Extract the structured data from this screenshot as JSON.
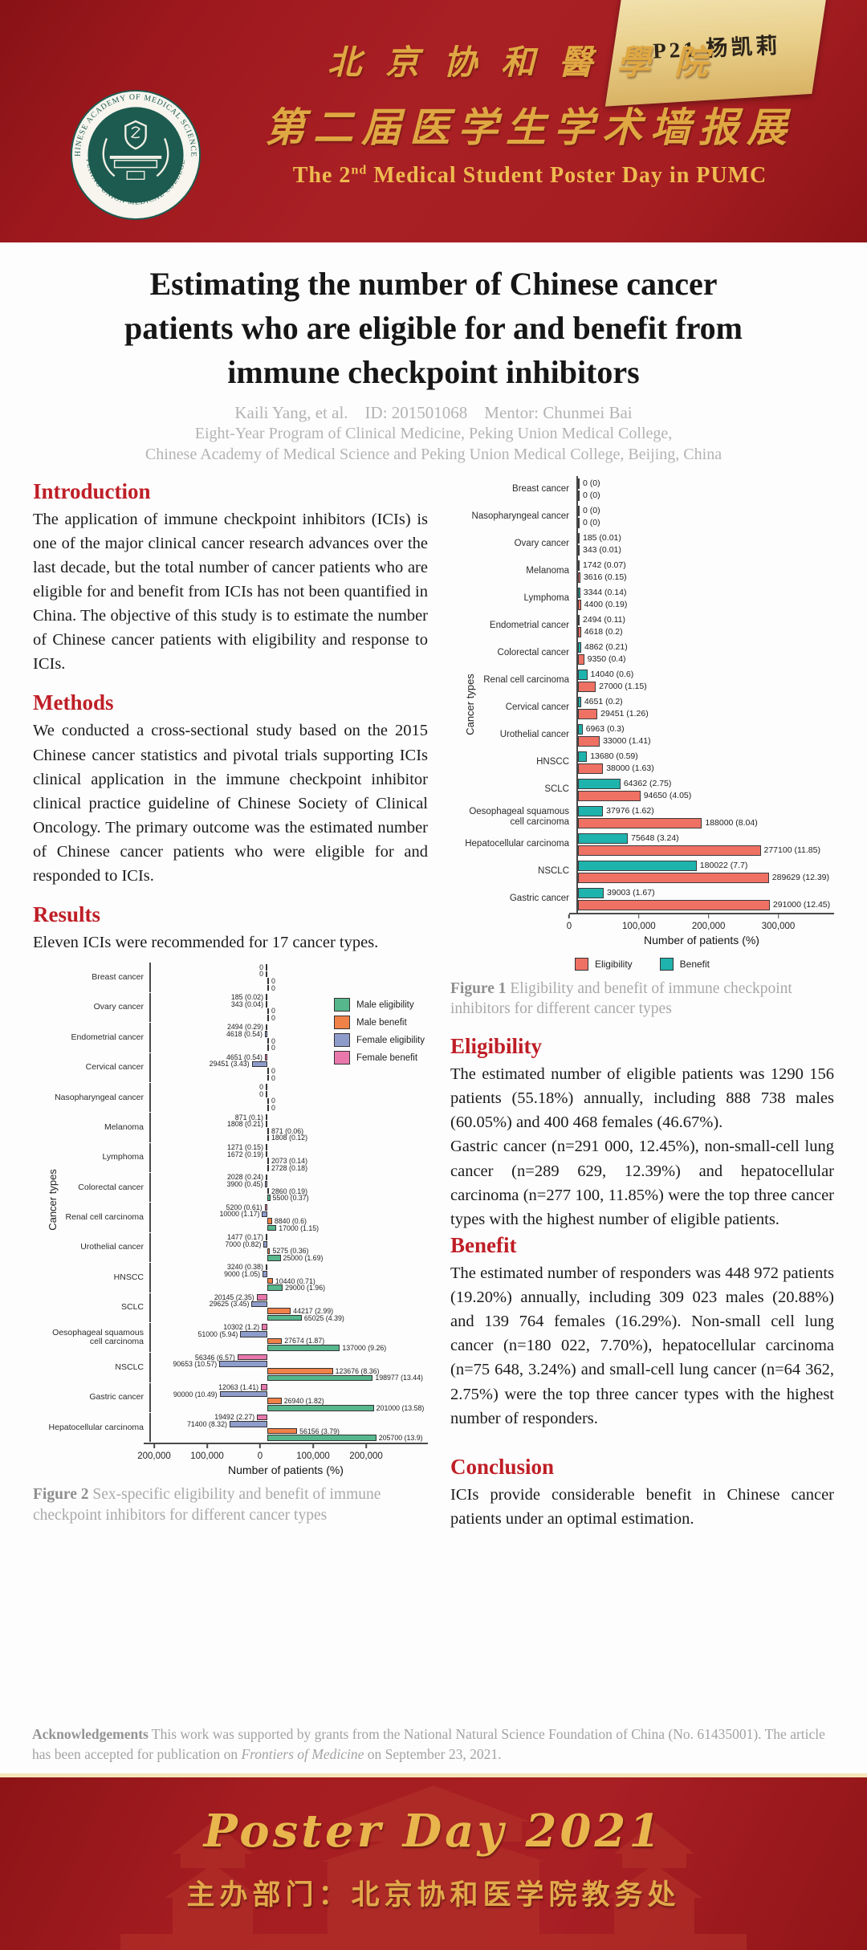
{
  "badge": {
    "text": "P21  杨凯莉"
  },
  "header": {
    "logo_ring_top": "CHINESE ACADEMY OF MEDICAL SCIENCES",
    "logo_ring_bottom": "PEKING UNION MEDICAL COLLEGE",
    "line1_cn": "北京协和醫學院",
    "line2_cn": "第二届医学生学术墙报展",
    "line_en_prefix": "The 2",
    "line_en_sup": "nd",
    "line_en_suffix": " Medical Student Poster Day in PUMC"
  },
  "title": {
    "line1": "Estimating the number of Chinese cancer",
    "line2": "patients who are eligible for and benefit from",
    "line3": "immune checkpoint inhibitors"
  },
  "authors": "Kaili Yang, et al.    ID: 201501068    Mentor: Chunmei Bai",
  "affiliation1": "Eight-Year Program of Clinical Medicine, Peking Union Medical College,",
  "affiliation2": "Chinese Academy of Medical Science and Peking Union Medical College, Beijing, China",
  "sections": {
    "introduction": {
      "heading": "Introduction",
      "body": "The application of immune checkpoint inhibitors (ICIs) is one of the major clinical cancer research advances over the last decade, but the total number of cancer patients who are eligible for and benefit from ICIs has not been quantified in China. The objective of this study is to estimate the number of Chinese cancer patients with eligibility and response to ICIs."
    },
    "methods": {
      "heading": "Methods",
      "body": "We conducted a cross-sectional study based on the 2015 Chinese cancer statistics and pivotal trials supporting ICIs clinical application in the immune checkpoint inhibitor clinical practice guideline of Chinese Society of Clinical Oncology. The primary outcome was the estimated number of Chinese cancer patients who were eligible for and responded to ICIs."
    },
    "results": {
      "heading": "Results",
      "body": "Eleven ICIs were recommended for 17 cancer types."
    },
    "eligibility": {
      "heading": "Eligibility",
      "body1": "The estimated number of eligible patients was 1290 156 patients (55.18%) annually, including 888 738 males (60.05%) and 400 468 females (46.67%).",
      "body2": "Gastric cancer (n=291 000, 12.45%), non-small-cell lung cancer (n=289 629, 12.39%) and hepatocellular carcinoma (n=277 100, 11.85%) were the top three cancer types with the highest number of eligible patients."
    },
    "benefit": {
      "heading": "Benefit",
      "body": "The estimated number of responders was 448 972 patients (19.20%) annually, including 309 023 males (20.88%) and 139 764 females (16.29%). Non-small cell lung cancer (n=180 022, 7.70%), hepatocellular carcinoma (n=75 648, 3.24%) and small-cell lung cancer (n=64 362, 2.75%) were the top three cancer types with the highest number of responders."
    },
    "conclusion": {
      "heading": "Conclusion",
      "body": "ICIs provide considerable benefit in Chinese cancer patients under an optimal estimation."
    }
  },
  "figures": {
    "fig1_bold": "Figure 1",
    "fig1_text": " Eligibility and benefit of immune checkpoint inhibitors for different cancer types",
    "fig2_bold": "Figure 2",
    "fig2_text": " Sex-specific eligibility and benefit of immune checkpoint inhibitors for different cancer types"
  },
  "acknowledgements": {
    "bold": "Acknowledgements",
    "text1": " This work was supported by grants from the National Natural Science Foundation of China (No. 61435001). The article has been accepted for publication on ",
    "italic": "Frontiers of Medicine",
    "text2": " on September 23, 2021."
  },
  "footer": {
    "script_text": "Poster Day 2021",
    "host_line": "主办部门：北京协和医学院教务处"
  },
  "chart_data": [
    {
      "id": "figure1",
      "type": "bar",
      "orientation": "horizontal",
      "xlabel": "Number of patients (%)",
      "ylabel": "Cancer types",
      "x_ticks": [
        "0",
        "100,000",
        "200,000",
        "300,000"
      ],
      "x_tick_values": [
        0,
        100000,
        200000,
        300000
      ],
      "xlim": [
        0,
        380000
      ],
      "grid": false,
      "legend_position": "bottom",
      "legend": [
        {
          "name": "Eligibility",
          "color": "#ee7164"
        },
        {
          "name": "Benefit",
          "color": "#1fb3ad"
        }
      ],
      "categories": [
        "Breast cancer",
        "Nasopharyngeal cancer",
        "Ovary cancer",
        "Melanoma",
        "Lymphoma",
        "Endometrial cancer",
        "Colorectal cancer",
        "Renal cell carcinoma",
        "Cervical cancer",
        "Urothelial cancer",
        "HNSCC",
        "SCLC",
        "Oesophageal squamous\ncell carcinoma",
        "Hepatocellular carcinoma",
        "NSCLC",
        "Gastric cancer"
      ],
      "series": [
        {
          "name": "Benefit",
          "color": "#1fb3ad",
          "values": [
            0,
            0,
            185,
            1742,
            3344,
            2494,
            4862,
            14040,
            4651,
            6963,
            13680,
            64362,
            37976,
            75648,
            180022,
            39003
          ],
          "labels": [
            "0 (0)",
            "0 (0)",
            "185 (0.01)",
            "1742 (0.07)",
            "3344 (0.14)",
            "2494 (0.11)",
            "4862 (0.21)",
            "14040 (0.6)",
            "4651 (0.2)",
            "6963 (0.3)",
            "13680 (0.59)",
            "64362 (2.75)",
            "37976 (1.62)",
            "75648 (3.24)",
            "180022 (7.7)",
            "39003 (1.67)"
          ]
        },
        {
          "name": "Eligibility",
          "color": "#ee7164",
          "values": [
            0,
            0,
            343,
            3616,
            4400,
            4618,
            9350,
            27000,
            29451,
            33000,
            38000,
            94650,
            188000,
            277100,
            289629,
            291000
          ],
          "labels": [
            "0 (0)",
            "0 (0)",
            "343 (0.01)",
            "3616 (0.15)",
            "4400 (0.19)",
            "4618 (0.2)",
            "9350 (0.4)",
            "27000 (1.15)",
            "29451 (1.26)",
            "33000 (1.41)",
            "38000 (1.63)",
            "94650 (4.05)",
            "188000 (8.04)",
            "277100 (11.85)",
            "289629 (12.39)",
            "291000 (12.45)"
          ]
        }
      ]
    },
    {
      "id": "figure2",
      "type": "bar",
      "orientation": "horizontal-diverging",
      "xlabel": "Number of patients (%)",
      "ylabel": "Cancer types",
      "x_ticks": [
        "200,000",
        "100,000",
        "0",
        "100,000",
        "200,000"
      ],
      "x_tick_values": [
        -200000,
        -100000,
        0,
        100000,
        200000
      ],
      "grid": false,
      "legend_position": "top-right",
      "legend": [
        {
          "name": "Male eligibility",
          "color": "#56b68c"
        },
        {
          "name": "Male benefit",
          "color": "#f08147"
        },
        {
          "name": "Female eligibility",
          "color": "#8e9ccb"
        },
        {
          "name": "Female benefit",
          "color": "#e878ac"
        }
      ],
      "categories": [
        "Breast cancer",
        "Ovary cancer",
        "Endometrial cancer",
        "Cervical cancer",
        "Nasopharyngeal cancer",
        "Melanoma",
        "Lymphoma",
        "Colorectal cancer",
        "Renal cell carcinoma",
        "Urothelial cancer",
        "HNSCC",
        "SCLC",
        "Oesophageal squamous\ncell carcinoma",
        "NSCLC",
        "Gastric cancer",
        "Hepatocellular carcinoma"
      ],
      "series": [
        {
          "name": "Female benefit",
          "side": "left",
          "color": "#e878ac",
          "values": [
            0,
            185,
            2494,
            4651,
            0,
            871,
            1271,
            2028,
            5200,
            1477,
            3240,
            20145,
            10302,
            56346,
            12063,
            19492
          ],
          "labels": [
            "0",
            "185 (0.02)",
            "2494 (0.29)",
            "4651 (0.54)",
            "0",
            "871 (0.1)",
            "1271 (0.15)",
            "2028 (0.24)",
            "5200 (0.61)",
            "1477 (0.17)",
            "3240 (0.38)",
            "20145 (2.35)",
            "10302 (1.2)",
            "56346 (6.57)",
            "12063 (1.41)",
            "19492 (2.27)"
          ]
        },
        {
          "name": "Female eligibility",
          "side": "left",
          "color": "#8e9ccb",
          "values": [
            0,
            343,
            4618,
            29451,
            0,
            1808,
            1672,
            3900,
            10000,
            7000,
            9000,
            29625,
            51000,
            90653,
            90000,
            71400
          ],
          "labels": [
            "0",
            "343 (0.04)",
            "4618 (0.54)",
            "29451 (3.43)",
            "0",
            "1808 (0.21)",
            "1672 (0.19)",
            "3900 (0.45)",
            "10000 (1.17)",
            "7000 (0.82)",
            "9000 (1.05)",
            "29625 (3.45)",
            "51000 (5.94)",
            "90653 (10.57)",
            "90000 (10.49)",
            "71400 (8.32)"
          ]
        },
        {
          "name": "Male benefit",
          "side": "right",
          "color": "#f08147",
          "values": [
            0,
            0,
            0,
            0,
            0,
            871,
            2073,
            2860,
            8840,
            5275,
            10440,
            44217,
            27674,
            123676,
            26940,
            56156
          ],
          "labels": [
            "0",
            "0",
            "0",
            "0",
            "0",
            "871 (0.06)",
            "2073 (0.14)",
            "2860 (0.19)",
            "8840 (0.6)",
            "5275 (0.36)",
            "10440 (0.71)",
            "44217 (2.99)",
            "27674 (1.87)",
            "123676 (8.36)",
            "26940 (1.82)",
            "56156 (3.79)"
          ]
        },
        {
          "name": "Male eligibility",
          "side": "right",
          "color": "#56b68c",
          "values": [
            0,
            0,
            0,
            0,
            0,
            1808,
            2728,
            5500,
            17000,
            25000,
            29000,
            65025,
            137000,
            198977,
            201000,
            205700
          ],
          "labels": [
            "0",
            "0",
            "0",
            "0",
            "0",
            "1808 (0.12)",
            "2728 (0.18)",
            "5500 (0.37)",
            "17000 (1.15)",
            "25000 (1.69)",
            "29000 (1.96)",
            "65025 (4.39)",
            "137000 (9.26)",
            "198977 (13.44)",
            "201000 (13.58)",
            "205700 (13.9)"
          ]
        }
      ]
    }
  ]
}
